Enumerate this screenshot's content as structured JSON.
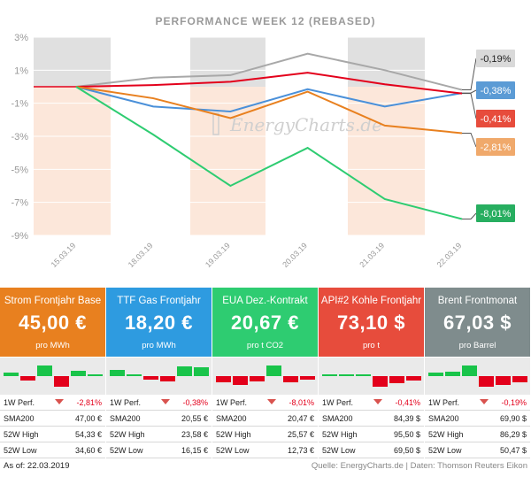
{
  "chart_data": {
    "type": "line",
    "title": "PERFORMANCE   WEEK 12 (REBASED)",
    "x": [
      "15.03.19",
      "18.03.19",
      "19.03.19",
      "20.03.19",
      "21.03.19",
      "22.03.19"
    ],
    "yticks": [
      "3%",
      "1%",
      "-1%",
      "-3%",
      "-5%",
      "-7%",
      "-9%"
    ],
    "ylim": [
      -9,
      3
    ],
    "series": [
      {
        "name": "Brent Frontmonat",
        "color": "#a8a8a8",
        "values": [
          0,
          0.55,
          0.7,
          2.0,
          1.0,
          -0.19
        ],
        "label": "-0,19%",
        "label_bg": "#d9d9d9",
        "label_color": "#222222"
      },
      {
        "name": "TTF Gas Frontjahr",
        "color": "#4a90d9",
        "values": [
          0,
          -1.2,
          -1.5,
          -0.15,
          -1.2,
          -0.38
        ],
        "label": "-0,38%",
        "label_bg": "#5b9bd5",
        "label_color": "#ffffff"
      },
      {
        "name": "API#2 Kohle Frontjahr",
        "color": "#e3001b",
        "values": [
          0,
          0.1,
          0.3,
          0.85,
          0.15,
          -0.41
        ],
        "label": "-0,41%",
        "label_bg": "#e74c3c",
        "label_color": "#ffffff"
      },
      {
        "name": "Strom Frontjahr Base",
        "color": "#e8801f",
        "values": [
          0,
          -0.7,
          -1.9,
          -0.3,
          -2.35,
          -2.81
        ],
        "label": "-2,81%",
        "label_bg": "#f0a96b",
        "label_color": "#ffffff"
      },
      {
        "name": "EUA Dez.-Kontrakt",
        "color": "#2ecc71",
        "values": [
          0,
          -2.9,
          -6.0,
          -3.7,
          -6.8,
          -8.01
        ],
        "label": "-8,01%",
        "label_bg": "#27ae60",
        "label_color": "#ffffff"
      }
    ],
    "grid": true,
    "watermark": "EnergyCharts.de"
  },
  "cards": [
    {
      "title": "Strom Frontjahr Base",
      "price": "45,00 €",
      "unit": "pro MWh",
      "color": "#e8801f",
      "minibars": [
        0.3,
        -0.4,
        1.0,
        -1.0,
        0.5,
        0.2
      ],
      "perf_label": "1W Perf.",
      "perf": "-2,81%",
      "rows": [
        [
          "SMA200",
          "47,00 €"
        ],
        [
          "52W High",
          "54,33 €"
        ],
        [
          "52W Low",
          "34,60 €"
        ]
      ]
    },
    {
      "title": "TTF Gas Frontjahr",
      "price": "18,20 €",
      "unit": "pro MWh",
      "color": "#2e9be0",
      "minibars": [
        0.6,
        0.2,
        -0.3,
        -0.5,
        0.9,
        0.8
      ],
      "perf_label": "1W Perf.",
      "perf": "-0,38%",
      "rows": [
        [
          "SMA200",
          "20,55 €"
        ],
        [
          "52W High",
          "23,58 €"
        ],
        [
          "52W Low",
          "16,15 €"
        ]
      ]
    },
    {
      "title": "EUA Dez.-Kontrakt",
      "price": "20,67 €",
      "unit": "pro t CO2",
      "color": "#2ecc71",
      "minibars": [
        -0.6,
        -0.8,
        -0.5,
        1.0,
        -0.6,
        -0.3
      ],
      "perf_label": "1W Perf.",
      "perf": "-8,01%",
      "rows": [
        [
          "SMA200",
          "20,47 €"
        ],
        [
          "52W High",
          "25,57 €"
        ],
        [
          "52W Low",
          "12,73 €"
        ]
      ]
    },
    {
      "title": "API#2 Kohle Frontjahr",
      "price": "73,10 $",
      "unit": "pro t",
      "color": "#e74c3c",
      "minibars": [
        0.2,
        0.1,
        0.1,
        -1.0,
        -0.7,
        -0.4
      ],
      "perf_label": "1W Perf.",
      "perf": "-0,41%",
      "rows": [
        [
          "SMA200",
          "84,39 $"
        ],
        [
          "52W High",
          "95,50 $"
        ],
        [
          "52W Low",
          "69,50 $"
        ]
      ]
    },
    {
      "title": "Brent Frontmonat",
      "price": "67,03 $",
      "unit": "pro Barrel",
      "color": "#7f8c8d",
      "minibars": [
        0.3,
        0.4,
        1.0,
        -1.0,
        -0.8,
        -0.6
      ],
      "perf_label": "1W Perf.",
      "perf": "-0,19%",
      "rows": [
        [
          "SMA200",
          "69,90 $"
        ],
        [
          "52W High",
          "86,29 $"
        ],
        [
          "52W Low",
          "50,47 $"
        ]
      ]
    }
  ],
  "footer": {
    "asof": "As of: 22.03.2019",
    "source": "Quelle: EnergyCharts.de | Daten: Thomson Reuters Eikon"
  }
}
